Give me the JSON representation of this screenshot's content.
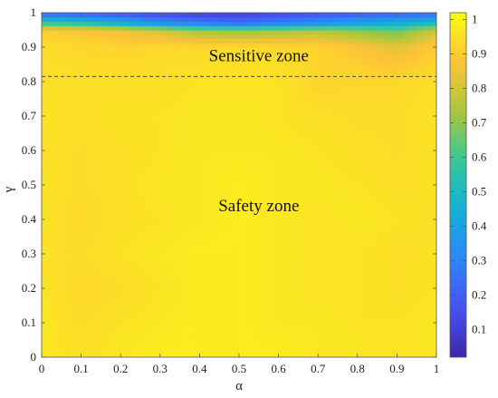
{
  "chart_data": {
    "type": "heatmap",
    "xlabel": "α",
    "ylabel": "γ",
    "xlim": [
      0,
      1
    ],
    "ylim": [
      0,
      1
    ],
    "x_ticks": [
      "0",
      "0.1",
      "0.2",
      "0.3",
      "0.4",
      "0.5",
      "0.6",
      "0.7",
      "0.8",
      "0.9",
      "1"
    ],
    "y_ticks": [
      "0",
      "0.1",
      "0.2",
      "0.3",
      "0.4",
      "0.5",
      "0.6",
      "0.7",
      "0.8",
      "0.9",
      "1"
    ],
    "colorbar": {
      "range": [
        0.02,
        1.02
      ],
      "ticks": [
        "0.1",
        "0.2",
        "0.3",
        "0.4",
        "0.5",
        "0.6",
        "0.7",
        "0.8",
        "0.9",
        "1"
      ],
      "colormap": "parula"
    },
    "threshold_line": {
      "gamma": 0.815,
      "style": "dashed"
    },
    "annotations": [
      {
        "text": "Sensitive zone",
        "alpha": 0.55,
        "gamma": 0.875
      },
      {
        "text": "Safety zone",
        "alpha": 0.55,
        "gamma": 0.44
      }
    ],
    "grid": false,
    "surface": {
      "description_values": "value near 0.95-1.0 over most of domain; falls to ~0.1-0.2 above gamma≈0.97",
      "x": [
        0,
        0.1,
        0.2,
        0.3,
        0.4,
        0.5,
        0.6,
        0.7,
        0.8,
        0.9,
        1.0
      ],
      "y": [
        0,
        0.1,
        0.2,
        0.3,
        0.4,
        0.5,
        0.6,
        0.7,
        0.8,
        0.9,
        0.95,
        0.97,
        1.0
      ],
      "z": [
        [
          0.97,
          0.95,
          0.97,
          0.98,
          0.98,
          0.98,
          0.98,
          0.97,
          0.97,
          0.96,
          0.97
        ],
        [
          0.97,
          0.94,
          0.96,
          0.97,
          0.98,
          0.98,
          0.97,
          0.97,
          0.96,
          0.96,
          0.97
        ],
        [
          0.96,
          0.93,
          0.94,
          0.96,
          0.98,
          0.98,
          0.97,
          0.96,
          0.96,
          0.95,
          0.96
        ],
        [
          0.95,
          0.94,
          0.96,
          0.97,
          0.98,
          0.98,
          0.97,
          0.96,
          0.96,
          0.95,
          0.96
        ],
        [
          0.96,
          0.93,
          0.95,
          0.96,
          0.97,
          0.98,
          0.97,
          0.96,
          0.97,
          0.96,
          0.95
        ],
        [
          0.96,
          0.94,
          0.95,
          0.97,
          0.97,
          0.98,
          0.97,
          0.97,
          0.96,
          0.95,
          0.96
        ],
        [
          0.95,
          0.94,
          0.95,
          0.96,
          0.97,
          0.97,
          0.97,
          0.96,
          0.95,
          0.94,
          0.96
        ],
        [
          0.96,
          0.95,
          0.96,
          0.96,
          0.97,
          0.97,
          0.96,
          0.95,
          0.94,
          0.94,
          0.96
        ],
        [
          0.95,
          0.95,
          0.95,
          0.95,
          0.96,
          0.96,
          0.96,
          0.92,
          0.93,
          0.93,
          0.95
        ],
        [
          0.94,
          0.93,
          0.92,
          0.93,
          0.93,
          0.94,
          0.93,
          0.92,
          0.88,
          0.83,
          0.9
        ],
        [
          0.9,
          0.88,
          0.85,
          0.8,
          0.72,
          0.7,
          0.72,
          0.75,
          0.7,
          0.65,
          0.8
        ],
        [
          0.6,
          0.55,
          0.45,
          0.35,
          0.28,
          0.25,
          0.3,
          0.35,
          0.4,
          0.45,
          0.5
        ],
        [
          0.2,
          0.18,
          0.15,
          0.12,
          0.1,
          0.1,
          0.12,
          0.15,
          0.18,
          0.2,
          0.22
        ]
      ]
    }
  }
}
